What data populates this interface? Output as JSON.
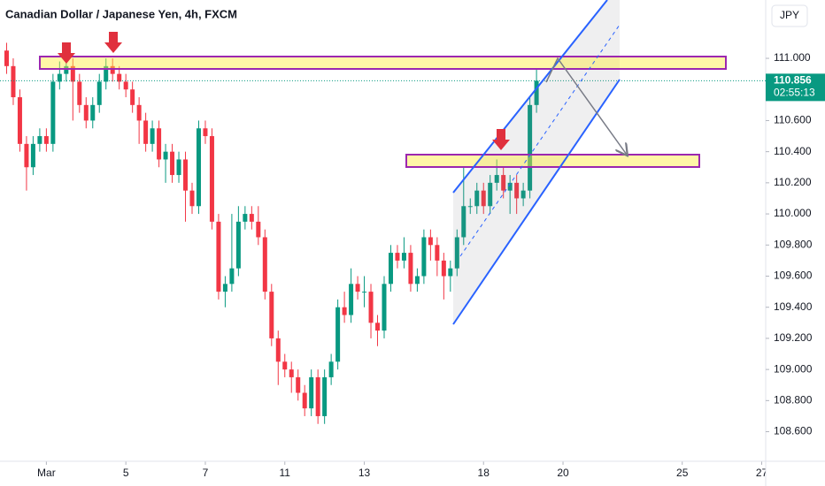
{
  "chart_data": {
    "type": "candlestick",
    "title": "Canadian Dollar / Japanese Yen, 4h, FXCM",
    "currency": "JPY",
    "countdown": "02:55:13",
    "up_color": "#089981",
    "down_color": "#f23645",
    "open": [
      111.05,
      110.95,
      110.75,
      110.45,
      110.3,
      110.45,
      110.5,
      110.45,
      110.85,
      110.9,
      110.95,
      110.85,
      110.7,
      110.6,
      110.7,
      110.85,
      110.95,
      110.9,
      110.85,
      110.8,
      110.7,
      110.6,
      110.45,
      110.55,
      110.35,
      110.4,
      110.25,
      110.35,
      110.15,
      110.05,
      110.55,
      110.5,
      109.95,
      109.5,
      109.55,
      109.65,
      109.95,
      110.0,
      109.95,
      109.85,
      109.5,
      109.2,
      109.05,
      109.0,
      108.95,
      108.85,
      108.75,
      108.95,
      108.7,
      108.95,
      109.05,
      109.4,
      109.35,
      109.55,
      109.5,
      109.5,
      109.3,
      109.25,
      109.55,
      109.75,
      109.7,
      109.75,
      109.55,
      109.6,
      109.85,
      109.8,
      109.7,
      109.6,
      109.65,
      109.85,
      110.05,
      110.05,
      110.15,
      110.05,
      110.2,
      110.25,
      110.15,
      110.2,
      110.1,
      110.15,
      110.7
    ],
    "high": [
      111.1,
      111.0,
      110.8,
      110.5,
      110.5,
      110.55,
      110.55,
      110.9,
      110.98,
      111.0,
      111.0,
      110.9,
      110.75,
      110.75,
      110.9,
      111.0,
      111.0,
      110.95,
      110.9,
      110.85,
      110.75,
      110.65,
      110.6,
      110.6,
      110.45,
      110.45,
      110.4,
      110.4,
      110.2,
      110.6,
      110.6,
      110.55,
      110.0,
      109.6,
      110.0,
      110.05,
      110.05,
      110.05,
      110.05,
      109.9,
      109.55,
      109.25,
      109.1,
      109.05,
      109.0,
      108.9,
      109.0,
      109.0,
      109.0,
      109.1,
      109.45,
      109.5,
      109.65,
      109.6,
      109.6,
      109.55,
      109.35,
      109.6,
      109.8,
      109.8,
      109.85,
      109.8,
      109.65,
      109.9,
      109.9,
      109.85,
      109.75,
      109.7,
      109.9,
      110.3,
      110.1,
      110.2,
      110.2,
      110.25,
      110.35,
      110.3,
      110.25,
      110.25,
      110.2,
      110.75,
      110.93
    ],
    "low": [
      110.9,
      110.7,
      110.4,
      110.15,
      110.25,
      110.4,
      110.4,
      110.4,
      110.8,
      110.85,
      110.6,
      110.65,
      110.55,
      110.55,
      110.65,
      110.8,
      110.85,
      110.8,
      110.75,
      110.65,
      110.45,
      110.4,
      110.4,
      110.3,
      110.2,
      110.2,
      110.2,
      109.95,
      110.0,
      110.0,
      110.45,
      109.9,
      109.45,
      109.4,
      109.5,
      109.6,
      109.9,
      109.9,
      109.8,
      109.45,
      109.15,
      108.9,
      108.95,
      108.85,
      108.8,
      108.7,
      108.7,
      108.65,
      108.65,
      108.9,
      109.0,
      109.3,
      109.3,
      109.45,
      109.4,
      109.2,
      109.15,
      109.2,
      109.5,
      109.65,
      109.65,
      109.5,
      109.5,
      109.55,
      109.7,
      109.6,
      109.45,
      109.5,
      109.6,
      109.8,
      110.0,
      110.0,
      110.0,
      110.0,
      110.15,
      110.1,
      110.0,
      110.0,
      110.05,
      110.1,
      110.65
    ],
    "close": [
      110.95,
      110.75,
      110.45,
      110.3,
      110.45,
      110.5,
      110.45,
      110.85,
      110.9,
      110.95,
      110.85,
      110.7,
      110.6,
      110.7,
      110.85,
      110.95,
      110.9,
      110.85,
      110.8,
      110.7,
      110.6,
      110.45,
      110.55,
      110.35,
      110.4,
      110.25,
      110.35,
      110.15,
      110.05,
      110.55,
      110.5,
      109.95,
      109.5,
      109.55,
      109.65,
      109.95,
      110.0,
      109.95,
      109.85,
      109.5,
      109.2,
      109.05,
      109.0,
      108.95,
      108.85,
      108.75,
      108.95,
      108.7,
      108.95,
      109.05,
      109.4,
      109.35,
      109.55,
      109.5,
      109.5,
      109.3,
      109.25,
      109.55,
      109.75,
      109.7,
      109.75,
      109.55,
      109.6,
      109.85,
      109.8,
      109.7,
      109.6,
      109.65,
      109.85,
      110.05,
      110.05,
      110.15,
      110.05,
      110.2,
      110.25,
      110.15,
      110.2,
      110.1,
      110.15,
      110.7,
      110.856
    ],
    "xlim": [
      -1,
      114.6
    ],
    "xticks": [
      {
        "value": 6,
        "label": "Mar"
      },
      {
        "value": 18,
        "label": "5"
      },
      {
        "value": 30,
        "label": "7"
      },
      {
        "value": 42,
        "label": "11"
      },
      {
        "value": 54,
        "label": "13"
      },
      {
        "value": 72,
        "label": "18"
      },
      {
        "value": 84,
        "label": "20"
      },
      {
        "value": 102,
        "label": "25"
      },
      {
        "value": 114,
        "label": "27"
      }
    ],
    "ylim": [
      108.41,
      111.375
    ],
    "yticks": [
      {
        "value": 108.6,
        "label": "108.600"
      },
      {
        "value": 108.8,
        "label": "108.800"
      },
      {
        "value": 109,
        "label": "109.000"
      },
      {
        "value": 109.2,
        "label": "109.200"
      },
      {
        "value": 109.4,
        "label": "109.400"
      },
      {
        "value": 109.6,
        "label": "109.600"
      },
      {
        "value": 109.8,
        "label": "109.800"
      },
      {
        "value": 110,
        "label": "110.000"
      },
      {
        "value": 110.2,
        "label": "110.200"
      },
      {
        "value": 110.4,
        "label": "110.400"
      },
      {
        "value": 110.6,
        "label": "110.600"
      },
      {
        "value": 111,
        "label": "111.000"
      }
    ]
  }
}
